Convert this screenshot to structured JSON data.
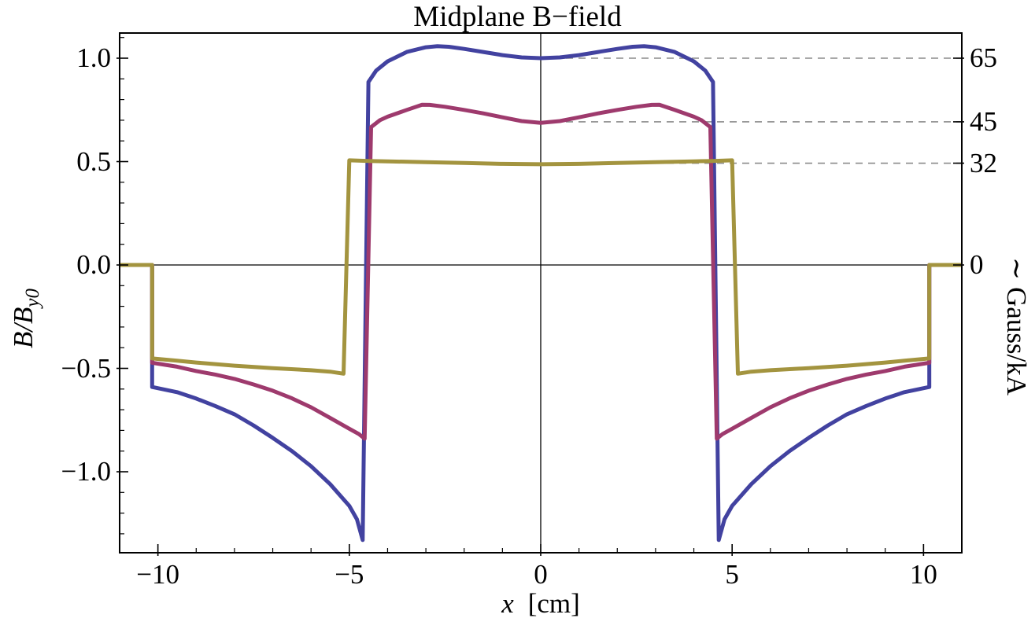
{
  "chart_data": {
    "type": "line",
    "title": "Midplane B−field",
    "xlabel_var": "x",
    "xlabel_unit": "[cm]",
    "ylabel_left_base": "B/B",
    "ylabel_left_sub": "y0",
    "ylabel_right": "∼ Gauss/kA",
    "xlim": [
      -11,
      11
    ],
    "ylim": [
      -1.3916,
      1.1217
    ],
    "grid": "off",
    "legend": "none",
    "x_major_ticks": [
      -10,
      -5,
      0,
      5,
      10
    ],
    "x_major_tick_labels": [
      "−10",
      "−5",
      "0",
      "5",
      "10"
    ],
    "x_minor_step": 1,
    "y_major_ticks_left": [
      1.0,
      0.5,
      0.0,
      -0.5,
      -1.0
    ],
    "y_major_tick_labels_left": [
      "1.0",
      "0.5",
      "0.0",
      "−0.5",
      "−1.0"
    ],
    "y_minor_step": 0.1,
    "right_axis": {
      "ticks": [
        {
          "label": "65",
          "B": 1.0
        },
        {
          "label": "45",
          "B": 0.6923
        },
        {
          "label": "32",
          "B": 0.4923
        },
        {
          "label": "0",
          "B": 0.0
        }
      ],
      "dashed_guides_B": [
        1.0,
        0.6923,
        0.4923
      ],
      "guide_color": "#8b8b8b"
    },
    "series": [
      {
        "name": "blue-series",
        "color": "#4242a0",
        "center_B": 1.0,
        "peak_B": 1.06,
        "right_axis_value": 65,
        "points": [
          [
            -11,
            0
          ],
          [
            -10.15,
            0
          ],
          [
            -10.15,
            -0.59
          ],
          [
            -9.5,
            -0.615
          ],
          [
            -9,
            -0.646
          ],
          [
            -8.5,
            -0.682
          ],
          [
            -8,
            -0.722
          ],
          [
            -7.5,
            -0.776
          ],
          [
            -7,
            -0.836
          ],
          [
            -6.5,
            -0.9
          ],
          [
            -6,
            -0.973
          ],
          [
            -5.5,
            -1.06
          ],
          [
            -5,
            -1.165
          ],
          [
            -4.8,
            -1.23
          ],
          [
            -4.65,
            -1.33
          ],
          [
            -4.5,
            0.885
          ],
          [
            -4.3,
            0.94
          ],
          [
            -4,
            0.985
          ],
          [
            -3.5,
            1.03
          ],
          [
            -3,
            1.053
          ],
          [
            -2.7,
            1.058
          ],
          [
            -2.4,
            1.055
          ],
          [
            -2,
            1.045
          ],
          [
            -1.5,
            1.03
          ],
          [
            -1,
            1.015
          ],
          [
            -0.5,
            1.004
          ],
          [
            0,
            1.0
          ],
          [
            0.5,
            1.004
          ],
          [
            1,
            1.015
          ],
          [
            1.5,
            1.03
          ],
          [
            2,
            1.045
          ],
          [
            2.4,
            1.055
          ],
          [
            2.7,
            1.058
          ],
          [
            3,
            1.053
          ],
          [
            3.5,
            1.03
          ],
          [
            4,
            0.985
          ],
          [
            4.3,
            0.94
          ],
          [
            4.5,
            0.885
          ],
          [
            4.65,
            -1.33
          ],
          [
            4.8,
            -1.23
          ],
          [
            5,
            -1.165
          ],
          [
            5.5,
            -1.06
          ],
          [
            6,
            -0.973
          ],
          [
            6.5,
            -0.9
          ],
          [
            7,
            -0.836
          ],
          [
            7.5,
            -0.776
          ],
          [
            8,
            -0.722
          ],
          [
            8.5,
            -0.682
          ],
          [
            9,
            -0.646
          ],
          [
            9.5,
            -0.615
          ],
          [
            10.15,
            -0.59
          ],
          [
            10.15,
            0
          ],
          [
            11,
            0
          ]
        ]
      },
      {
        "name": "magenta-series",
        "color": "#9e3a6d",
        "center_B": 0.687,
        "peak_B": 0.775,
        "right_axis_value": 45,
        "points": [
          [
            -11,
            0
          ],
          [
            -10.15,
            0
          ],
          [
            -10.15,
            -0.473
          ],
          [
            -9.5,
            -0.492
          ],
          [
            -9,
            -0.513
          ],
          [
            -8.5,
            -0.53
          ],
          [
            -8,
            -0.551
          ],
          [
            -7.5,
            -0.578
          ],
          [
            -7,
            -0.608
          ],
          [
            -6.5,
            -0.645
          ],
          [
            -6,
            -0.688
          ],
          [
            -5.5,
            -0.74
          ],
          [
            -5,
            -0.792
          ],
          [
            -4.75,
            -0.818
          ],
          [
            -4.6,
            -0.84
          ],
          [
            -4.43,
            0.667
          ],
          [
            -4.2,
            0.7
          ],
          [
            -4,
            0.717
          ],
          [
            -3.5,
            0.75
          ],
          [
            -3.1,
            0.775
          ],
          [
            -2.9,
            0.774
          ],
          [
            -2.5,
            0.765
          ],
          [
            -2,
            0.75
          ],
          [
            -1.5,
            0.733
          ],
          [
            -1,
            0.714
          ],
          [
            -0.5,
            0.696
          ],
          [
            0,
            0.687
          ],
          [
            0.5,
            0.696
          ],
          [
            1,
            0.714
          ],
          [
            1.5,
            0.733
          ],
          [
            2,
            0.75
          ],
          [
            2.5,
            0.765
          ],
          [
            2.9,
            0.774
          ],
          [
            3.1,
            0.775
          ],
          [
            3.5,
            0.75
          ],
          [
            4,
            0.717
          ],
          [
            4.2,
            0.7
          ],
          [
            4.43,
            0.667
          ],
          [
            4.6,
            -0.84
          ],
          [
            4.75,
            -0.818
          ],
          [
            5,
            -0.792
          ],
          [
            5.5,
            -0.74
          ],
          [
            6,
            -0.688
          ],
          [
            6.5,
            -0.645
          ],
          [
            7,
            -0.608
          ],
          [
            7.5,
            -0.578
          ],
          [
            8,
            -0.551
          ],
          [
            8.5,
            -0.53
          ],
          [
            9,
            -0.513
          ],
          [
            9.5,
            -0.492
          ],
          [
            10.15,
            -0.473
          ],
          [
            10.15,
            0
          ],
          [
            11,
            0
          ]
        ]
      },
      {
        "name": "olive-series",
        "color": "#a3943f",
        "center_B": 0.487,
        "peak_B": 0.503,
        "right_axis_value": 32,
        "points": [
          [
            -11,
            0
          ],
          [
            -10.15,
            0
          ],
          [
            -10.15,
            -0.452
          ],
          [
            -9.5,
            -0.463
          ],
          [
            -9,
            -0.472
          ],
          [
            -8,
            -0.487
          ],
          [
            -7,
            -0.499
          ],
          [
            -6,
            -0.509
          ],
          [
            -5.5,
            -0.516
          ],
          [
            -5.15,
            -0.526
          ],
          [
            -5.0,
            0.506
          ],
          [
            -4.5,
            0.503
          ],
          [
            -4,
            0.501
          ],
          [
            -3,
            0.497
          ],
          [
            -2,
            0.493
          ],
          [
            -1,
            0.489
          ],
          [
            0,
            0.487
          ],
          [
            1,
            0.489
          ],
          [
            2,
            0.493
          ],
          [
            3,
            0.497
          ],
          [
            4,
            0.501
          ],
          [
            4.5,
            0.503
          ],
          [
            5.0,
            0.506
          ],
          [
            5.15,
            -0.526
          ],
          [
            5.5,
            -0.516
          ],
          [
            6,
            -0.509
          ],
          [
            7,
            -0.499
          ],
          [
            8,
            -0.487
          ],
          [
            9,
            -0.472
          ],
          [
            9.5,
            -0.463
          ],
          [
            10.15,
            -0.452
          ],
          [
            10.15,
            0
          ],
          [
            11,
            0
          ]
        ]
      }
    ]
  }
}
